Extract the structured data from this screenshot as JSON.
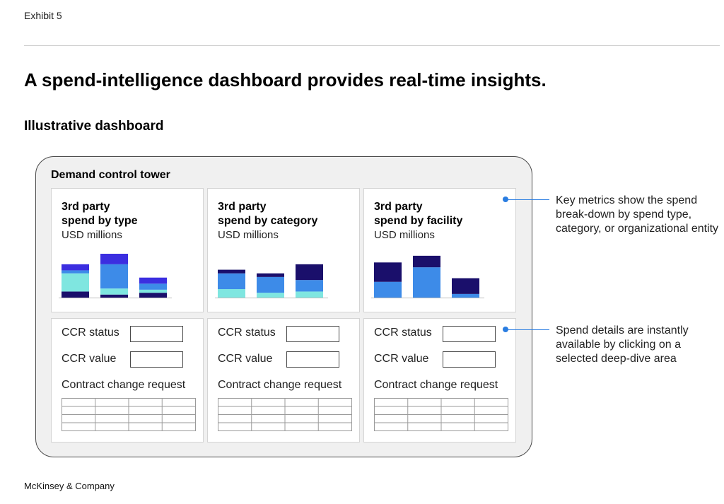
{
  "exhibit": "Exhibit 5",
  "title": "A spend-intelligence dashboard provides real-time insights.",
  "subtitle": "Illustrative dashboard",
  "dashboard": {
    "title": "Demand control tower",
    "panels": [
      {
        "title_line1": "3rd party",
        "title_line2": "spend by type",
        "unit": "USD millions"
      },
      {
        "title_line1": "3rd party",
        "title_line2": "spend by category",
        "unit": "USD millions"
      },
      {
        "title_line1": "3rd party",
        "title_line2": "spend by facility",
        "unit": "USD millions"
      }
    ],
    "details": {
      "status_label": "CCR status",
      "value_label": "CCR value",
      "ccr_label": "Contract change request"
    }
  },
  "callouts": [
    "Key metrics show the spend break-down by spend type, category, or organizational entity",
    "Spend details are instantly available by clicking on a selected deep-dive area"
  ],
  "footer": "McKinsey & Company",
  "colors": {
    "navy": "#1a0f6b",
    "blue": "#3d8be8",
    "teal": "#7fe6e0",
    "violet": "#3b2ee0",
    "accent": "#2a7de1"
  },
  "chart_data": [
    {
      "type": "bar",
      "stacked": true,
      "categories": [
        "",
        "",
        ""
      ],
      "series": [
        {
          "values": [
            1.0,
            2.0,
            1.0
          ]
        },
        {
          "values": [
            0.5,
            4.0,
            1.0
          ]
        },
        {
          "values": [
            3.0,
            1.0,
            0.5
          ]
        },
        {
          "values": [
            1.0,
            0.5,
            0.8
          ]
        }
      ]
    },
    {
      "type": "bar",
      "stacked": true,
      "categories": [
        "",
        "",
        ""
      ],
      "series": [
        {
          "values": [
            0.6,
            0.6,
            2.6
          ]
        },
        {
          "values": [
            2.6,
            2.6,
            1.9
          ]
        },
        {
          "values": [
            1.4,
            0.8,
            1.0
          ]
        }
      ]
    },
    {
      "type": "bar",
      "stacked": true,
      "categories": [
        "",
        "",
        ""
      ],
      "series": [
        {
          "values": [
            3.2,
            1.9,
            2.6
          ]
        },
        {
          "values": [
            2.6,
            5.0,
            0.6
          ]
        }
      ]
    }
  ]
}
